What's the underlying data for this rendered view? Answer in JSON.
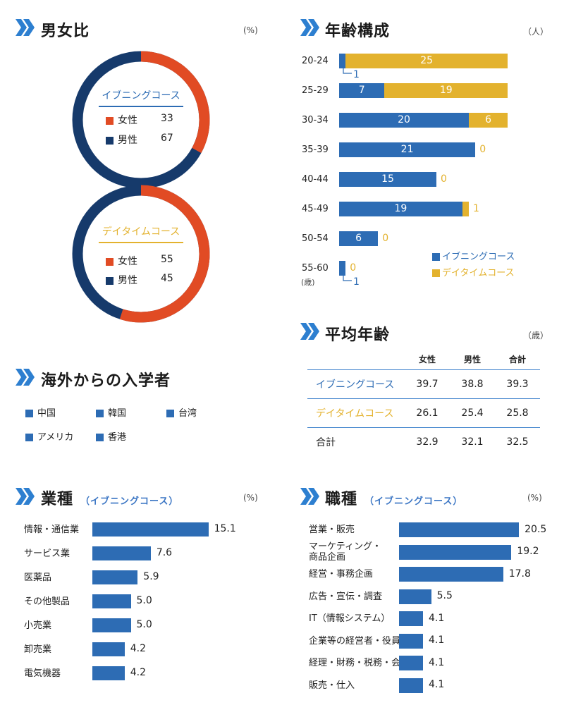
{
  "colors": {
    "evening": "#2d6cb4",
    "daytime": "#e3b22e",
    "female": "#e14b24",
    "male": "#163a6b",
    "chevron": "#2d7fd0",
    "bar": "#2d6cb4"
  },
  "gender": {
    "title": "男女比",
    "unit": "(%)",
    "evening": {
      "name": "イブニングコース",
      "items": [
        {
          "label": "女性",
          "value": 33
        },
        {
          "label": "男性",
          "value": 67
        }
      ]
    },
    "daytime": {
      "name": "デイタイムコース",
      "items": [
        {
          "label": "女性",
          "value": 55
        },
        {
          "label": "男性",
          "value": 45
        }
      ]
    }
  },
  "age": {
    "title": "年齢構成",
    "unit": "（人）",
    "axis_unit": "(歳)",
    "legend": [
      "イブニングコース",
      "デイタイムコース"
    ],
    "chart_data": {
      "type": "bar",
      "categories": [
        "20-24",
        "25-29",
        "30-34",
        "35-39",
        "40-44",
        "45-49",
        "50-54",
        "55-60"
      ],
      "series": [
        {
          "name": "イブニングコース",
          "values": [
            1,
            7,
            20,
            21,
            15,
            19,
            6,
            1
          ]
        },
        {
          "name": "デイタイムコース",
          "values": [
            25,
            19,
            6,
            0,
            0,
            1,
            0,
            0
          ]
        }
      ]
    }
  },
  "avg": {
    "title": "平均年齢",
    "unit": "（歳）",
    "headers": [
      "女性",
      "男性",
      "合計"
    ],
    "rows": [
      {
        "label": "イブニングコース",
        "values": [
          "39.7",
          "38.8",
          "39.3"
        ]
      },
      {
        "label": "デイタイムコース",
        "values": [
          "26.1",
          "25.4",
          "25.8"
        ]
      },
      {
        "label": "合計",
        "values": [
          "32.9",
          "32.1",
          "32.5"
        ]
      }
    ]
  },
  "intl": {
    "title": "海外からの入学者",
    "countries": [
      "中国",
      "韓国",
      "台湾",
      "アメリカ",
      "香港"
    ]
  },
  "industry": {
    "title": "業種",
    "subtitle": "（イブニングコース）",
    "unit": "(%)",
    "chart_data": {
      "type": "bar",
      "categories": [
        "情報・通信業",
        "サービス業",
        "医薬品",
        "その他製品",
        "小売業",
        "卸売業",
        "電気機器"
      ],
      "values": [
        15.1,
        7.6,
        5.9,
        5.0,
        5.0,
        4.2,
        4.2
      ],
      "value_labels": [
        "15.1",
        "7.6",
        "5.9",
        "5.0",
        "5.0",
        "4.2",
        "4.2"
      ]
    }
  },
  "job": {
    "title": "職種",
    "subtitle": "（イブニングコース）",
    "unit": "(%)",
    "chart_data": {
      "type": "bar",
      "categories": [
        "営業・販売",
        "マーケティング・\n商品企画",
        "経営・事務企画",
        "広告・宣伝・調査",
        "IT（情報システム）",
        "企業等の経営者・役員",
        "経理・財務・税務・会計",
        "販売・仕入"
      ],
      "values": [
        20.5,
        19.2,
        17.8,
        5.5,
        4.1,
        4.1,
        4.1,
        4.1
      ],
      "value_labels": [
        "20.5",
        "19.2",
        "17.8",
        "5.5",
        "4.1",
        "4.1",
        "4.1",
        "4.1"
      ]
    }
  }
}
